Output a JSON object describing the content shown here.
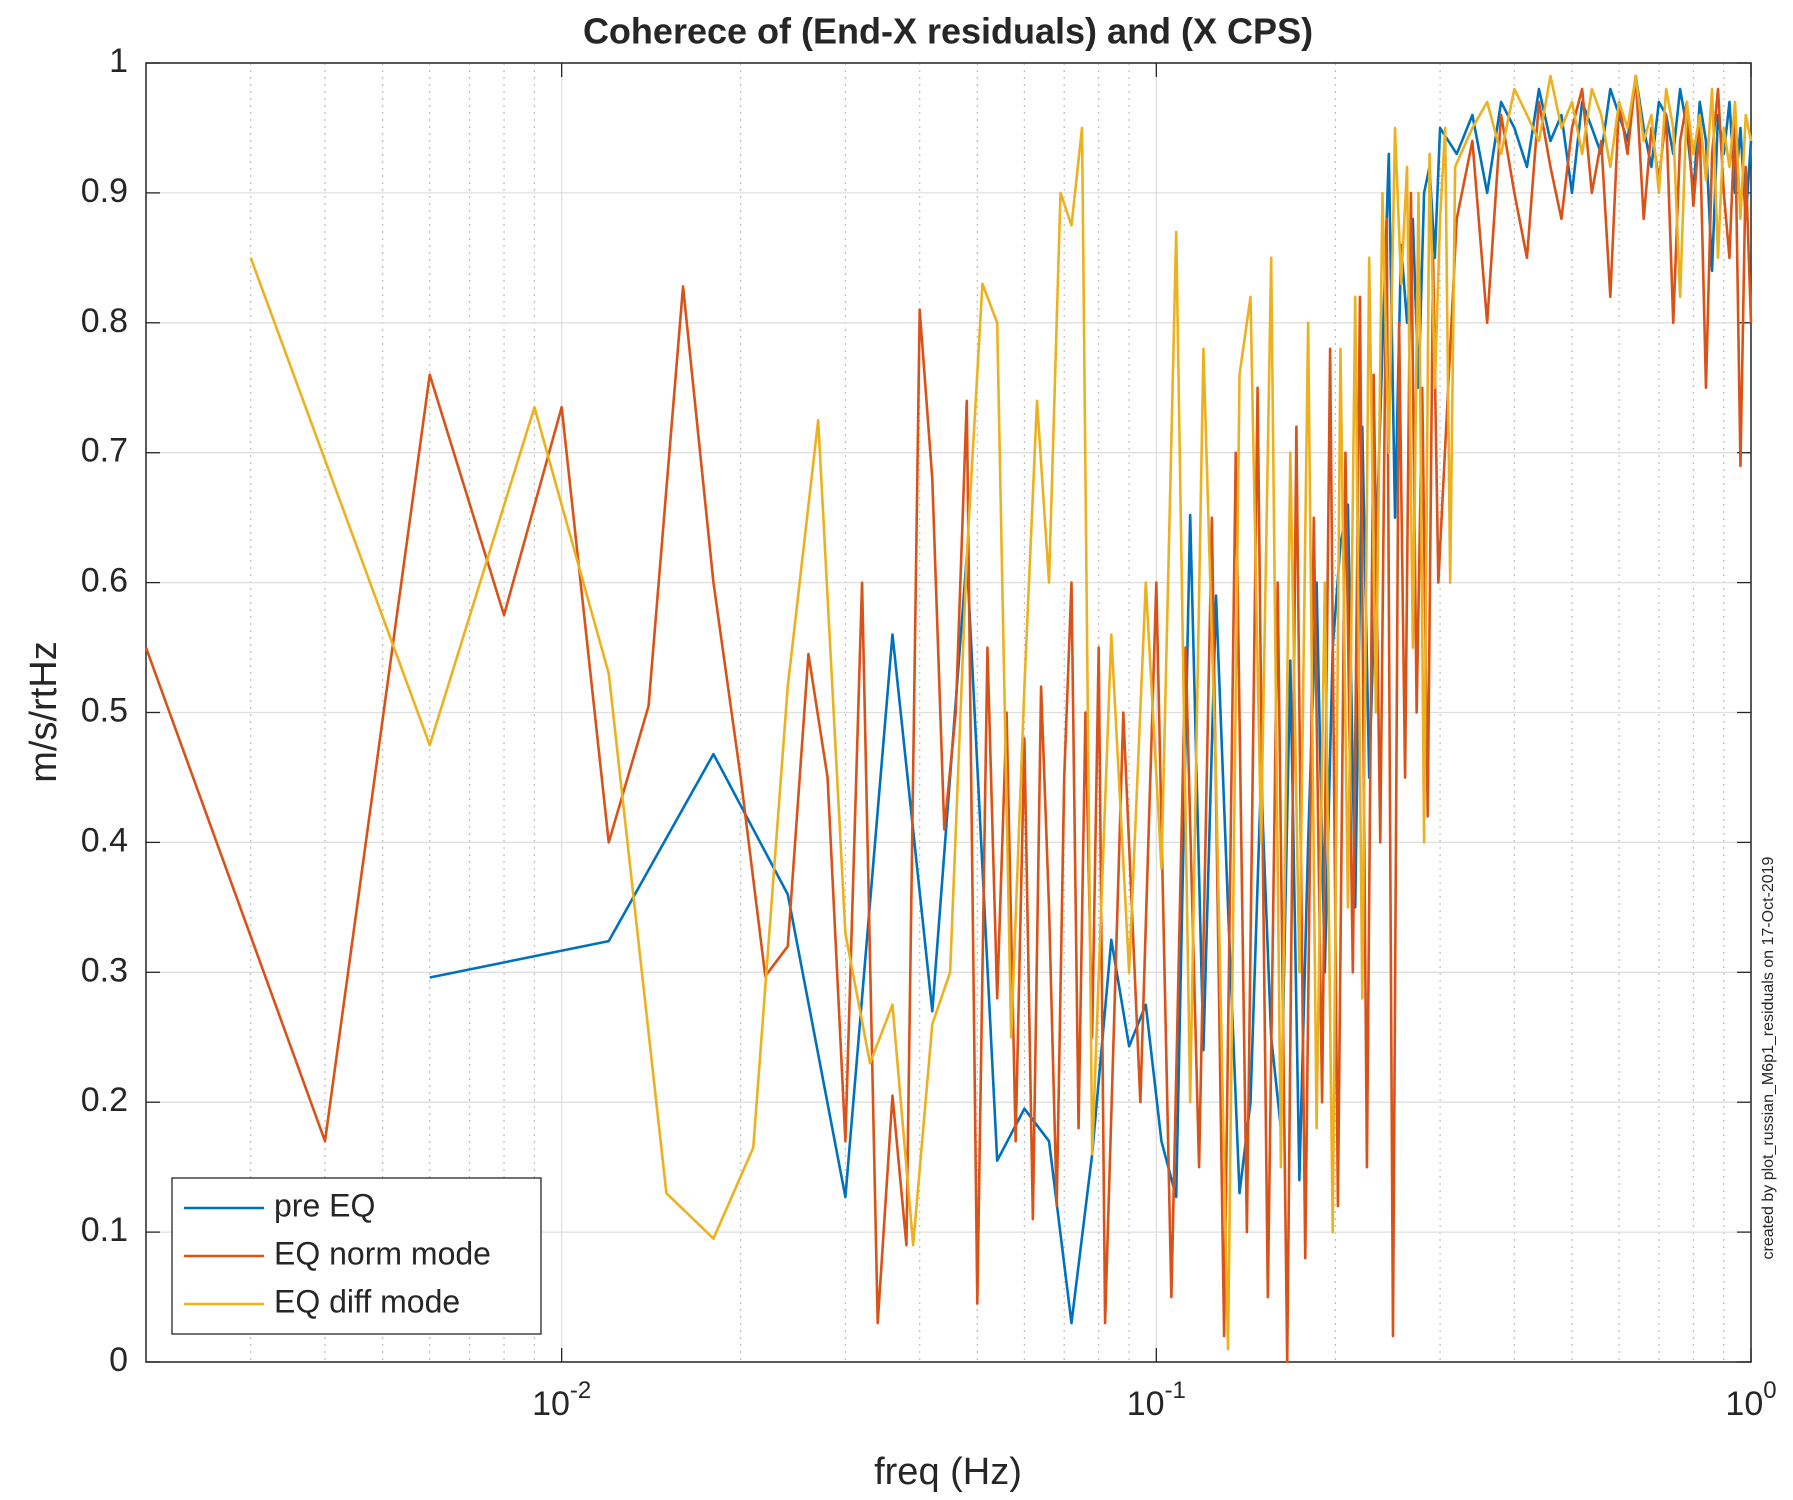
{
  "chart_data": {
    "type": "line",
    "title": "Coherece of (End-X residuals) and (X CPS)",
    "xlabel": "freq (Hz)",
    "ylabel": "m/s/rtHz",
    "annotation": "created by plot_russian_M6p1_residuals on 17-Oct-2019",
    "xscale": "log",
    "grid": true,
    "minor_grid": true,
    "legend_location": "southwest",
    "xlim": [
      0.002,
      1
    ],
    "ylim": [
      0,
      1
    ],
    "xticks": [
      {
        "value": 0.01,
        "label": "10^{-2}"
      },
      {
        "value": 0.1,
        "label": "10^{-1}"
      },
      {
        "value": 1,
        "label": "10^{0}"
      }
    ],
    "xminorticks": [
      0.002,
      0.003,
      0.004,
      0.005,
      0.006,
      0.007,
      0.008,
      0.009,
      0.02,
      0.03,
      0.04,
      0.05,
      0.06,
      0.07,
      0.08,
      0.09,
      0.2,
      0.3,
      0.4,
      0.5,
      0.6,
      0.7,
      0.8,
      0.9
    ],
    "yticks": [
      0,
      0.1,
      0.2,
      0.3,
      0.4,
      0.5,
      0.6,
      0.7,
      0.8,
      0.9,
      1
    ],
    "series": [
      {
        "name": "pre EQ",
        "color": "#0072BD",
        "x": [
          0.006,
          0.012,
          0.018,
          0.024,
          0.03,
          0.036,
          0.042,
          0.048,
          0.054,
          0.06,
          0.066,
          0.072,
          0.078,
          0.084,
          0.09,
          0.096,
          0.102,
          0.108,
          0.114,
          0.12,
          0.126,
          0.132,
          0.138,
          0.144,
          0.15,
          0.156,
          0.162,
          0.168,
          0.174,
          0.18,
          0.186,
          0.192,
          0.198,
          0.204,
          0.21,
          0.216,
          0.222,
          0.228,
          0.234,
          0.24,
          0.246,
          0.252,
          0.258,
          0.264,
          0.27,
          0.276,
          0.282,
          0.288,
          0.294,
          0.3,
          0.32,
          0.34,
          0.36,
          0.38,
          0.4,
          0.42,
          0.44,
          0.46,
          0.48,
          0.5,
          0.52,
          0.54,
          0.56,
          0.58,
          0.6,
          0.62,
          0.64,
          0.66,
          0.68,
          0.7,
          0.72,
          0.74,
          0.76,
          0.78,
          0.8,
          0.82,
          0.84,
          0.86,
          0.88,
          0.9,
          0.92,
          0.94,
          0.96,
          0.98,
          1.0
        ],
        "values": [
          0.296,
          0.324,
          0.468,
          0.36,
          0.127,
          0.56,
          0.27,
          0.62,
          0.155,
          0.195,
          0.17,
          0.03,
          0.16,
          0.325,
          0.243,
          0.275,
          0.17,
          0.127,
          0.652,
          0.24,
          0.59,
          0.35,
          0.13,
          0.2,
          0.45,
          0.25,
          0.18,
          0.54,
          0.14,
          0.4,
          0.6,
          0.3,
          0.55,
          0.63,
          0.66,
          0.35,
          0.72,
          0.45,
          0.62,
          0.78,
          0.93,
          0.65,
          0.86,
          0.8,
          0.88,
          0.75,
          0.9,
          0.92,
          0.85,
          0.95,
          0.93,
          0.96,
          0.9,
          0.97,
          0.95,
          0.92,
          0.98,
          0.94,
          0.96,
          0.9,
          0.97,
          0.95,
          0.93,
          0.98,
          0.96,
          0.94,
          0.99,
          0.95,
          0.92,
          0.97,
          0.96,
          0.93,
          0.98,
          0.95,
          0.9,
          0.97,
          0.94,
          0.84,
          0.96,
          0.93,
          0.97,
          0.9,
          0.95,
          0.88,
          0.94
        ]
      },
      {
        "name": "EQ norm mode",
        "color": "#D95319",
        "x": [
          0.002,
          0.004,
          0.006,
          0.008,
          0.01,
          0.012,
          0.014,
          0.016,
          0.018,
          0.02,
          0.022,
          0.024,
          0.026,
          0.028,
          0.03,
          0.032,
          0.034,
          0.036,
          0.038,
          0.04,
          0.042,
          0.044,
          0.046,
          0.048,
          0.05,
          0.052,
          0.054,
          0.056,
          0.058,
          0.06,
          0.062,
          0.064,
          0.066,
          0.068,
          0.07,
          0.072,
          0.074,
          0.076,
          0.078,
          0.08,
          0.082,
          0.088,
          0.094,
          0.1,
          0.106,
          0.112,
          0.118,
          0.124,
          0.13,
          0.136,
          0.142,
          0.148,
          0.154,
          0.16,
          0.166,
          0.172,
          0.178,
          0.184,
          0.19,
          0.196,
          0.202,
          0.208,
          0.214,
          0.22,
          0.226,
          0.232,
          0.238,
          0.244,
          0.25,
          0.256,
          0.262,
          0.268,
          0.274,
          0.28,
          0.286,
          0.292,
          0.298,
          0.32,
          0.34,
          0.36,
          0.38,
          0.4,
          0.42,
          0.44,
          0.46,
          0.48,
          0.5,
          0.52,
          0.54,
          0.56,
          0.58,
          0.6,
          0.62,
          0.64,
          0.66,
          0.68,
          0.7,
          0.72,
          0.74,
          0.76,
          0.78,
          0.8,
          0.82,
          0.84,
          0.86,
          0.88,
          0.9,
          0.92,
          0.94,
          0.96,
          0.98,
          1.0
        ],
        "values": [
          0.55,
          0.17,
          0.76,
          0.575,
          0.735,
          0.4,
          0.505,
          0.828,
          0.6,
          0.45,
          0.297,
          0.32,
          0.545,
          0.45,
          0.17,
          0.6,
          0.03,
          0.205,
          0.09,
          0.81,
          0.68,
          0.41,
          0.5,
          0.74,
          0.045,
          0.55,
          0.28,
          0.5,
          0.17,
          0.48,
          0.11,
          0.52,
          0.35,
          0.12,
          0.45,
          0.6,
          0.18,
          0.5,
          0.25,
          0.55,
          0.03,
          0.5,
          0.2,
          0.6,
          0.05,
          0.55,
          0.15,
          0.65,
          0.02,
          0.7,
          0.1,
          0.75,
          0.05,
          0.6,
          0.0,
          0.72,
          0.08,
          0.65,
          0.2,
          0.78,
          0.12,
          0.7,
          0.3,
          0.82,
          0.15,
          0.76,
          0.4,
          0.88,
          0.02,
          0.8,
          0.45,
          0.9,
          0.5,
          0.75,
          0.42,
          0.85,
          0.6,
          0.88,
          0.94,
          0.8,
          0.96,
          0.9,
          0.85,
          0.97,
          0.92,
          0.88,
          0.95,
          0.98,
          0.9,
          0.94,
          0.82,
          0.97,
          0.93,
          0.99,
          0.88,
          0.95,
          0.91,
          0.96,
          0.8,
          0.94,
          0.97,
          0.89,
          0.95,
          0.75,
          0.93,
          0.98,
          0.9,
          0.85,
          0.96,
          0.69,
          0.92,
          0.8
        ]
      },
      {
        "name": "EQ diff mode",
        "color": "#EDB120",
        "x": [
          0.003,
          0.006,
          0.009,
          0.012,
          0.015,
          0.018,
          0.021,
          0.024,
          0.027,
          0.03,
          0.033,
          0.036,
          0.039,
          0.042,
          0.045,
          0.048,
          0.051,
          0.054,
          0.057,
          0.06,
          0.063,
          0.066,
          0.069,
          0.072,
          0.075,
          0.078,
          0.084,
          0.09,
          0.096,
          0.102,
          0.108,
          0.114,
          0.12,
          0.126,
          0.132,
          0.138,
          0.144,
          0.15,
          0.156,
          0.162,
          0.168,
          0.174,
          0.18,
          0.186,
          0.192,
          0.198,
          0.204,
          0.21,
          0.216,
          0.222,
          0.228,
          0.234,
          0.24,
          0.246,
          0.252,
          0.258,
          0.264,
          0.27,
          0.276,
          0.282,
          0.288,
          0.294,
          0.3,
          0.306,
          0.312,
          0.318,
          0.34,
          0.36,
          0.38,
          0.4,
          0.42,
          0.44,
          0.46,
          0.48,
          0.5,
          0.52,
          0.54,
          0.56,
          0.58,
          0.6,
          0.62,
          0.64,
          0.66,
          0.68,
          0.7,
          0.72,
          0.74,
          0.76,
          0.78,
          0.8,
          0.82,
          0.84,
          0.86,
          0.88,
          0.9,
          0.92,
          0.94,
          0.96,
          0.98,
          1.0
        ],
        "values": [
          0.85,
          0.475,
          0.735,
          0.53,
          0.13,
          0.095,
          0.165,
          0.52,
          0.725,
          0.33,
          0.23,
          0.275,
          0.09,
          0.26,
          0.3,
          0.62,
          0.83,
          0.8,
          0.25,
          0.52,
          0.74,
          0.6,
          0.9,
          0.875,
          0.95,
          0.16,
          0.56,
          0.3,
          0.6,
          0.38,
          0.87,
          0.2,
          0.78,
          0.45,
          0.01,
          0.76,
          0.82,
          0.4,
          0.85,
          0.15,
          0.7,
          0.3,
          0.8,
          0.18,
          0.6,
          0.1,
          0.78,
          0.35,
          0.82,
          0.28,
          0.85,
          0.5,
          0.9,
          0.7,
          0.95,
          0.83,
          0.92,
          0.55,
          0.9,
          0.4,
          0.93,
          0.75,
          0.88,
          0.95,
          0.6,
          0.92,
          0.95,
          0.97,
          0.93,
          0.98,
          0.96,
          0.94,
          0.99,
          0.95,
          0.97,
          0.93,
          0.98,
          0.96,
          0.92,
          0.97,
          0.95,
          0.99,
          0.94,
          0.96,
          0.9,
          0.98,
          0.95,
          0.82,
          0.97,
          0.93,
          0.96,
          0.91,
          0.98,
          0.85,
          0.95,
          0.92,
          0.97,
          0.88,
          0.96,
          0.94
        ]
      }
    ]
  }
}
